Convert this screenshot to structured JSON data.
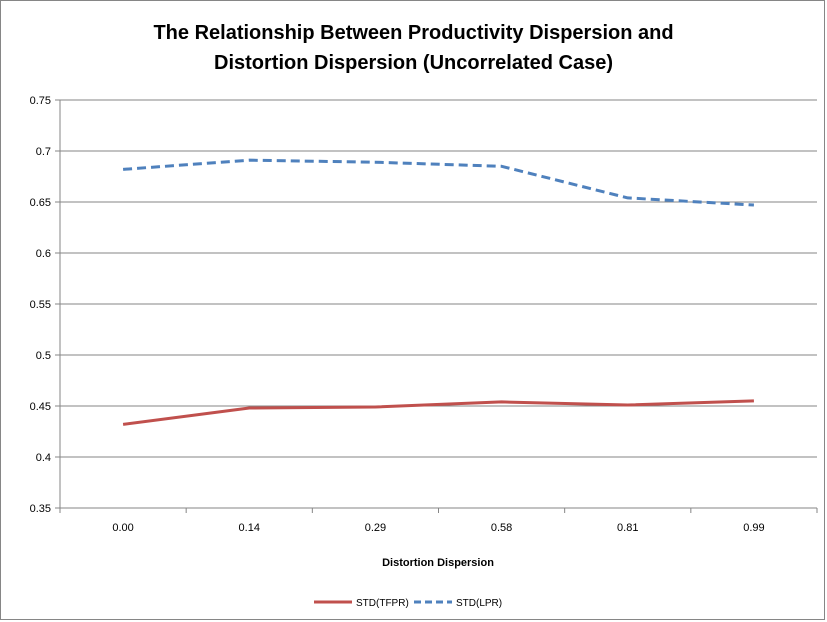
{
  "chart_data": {
    "type": "line",
    "title_lines": [
      "The Relationship Between Productivity Dispersion  and",
      "Distortion Dispersion (Uncorrelated Case)"
    ],
    "xlabel": "Distortion Dispersion",
    "ylabel": "",
    "categories": [
      "0.00",
      "0.14",
      "0.29",
      "0.58",
      "0.81",
      "0.99"
    ],
    "ylim": [
      0.35,
      0.75
    ],
    "yticks": [
      "0.35",
      "0.4",
      "0.45",
      "0.5",
      "0.55",
      "0.6",
      "0.65",
      "0.7",
      "0.75"
    ],
    "grid": "horizontal",
    "legend_position": "bottom",
    "series": [
      {
        "name": "STD(TFPR)",
        "values": [
          0.432,
          0.448,
          0.449,
          0.454,
          0.451,
          0.455
        ],
        "color": "#C0504D",
        "style": "solid"
      },
      {
        "name": "STD(LPR)",
        "values": [
          0.682,
          0.691,
          0.689,
          0.685,
          0.654,
          0.647
        ],
        "color": "#4F81BD",
        "style": "dashed"
      }
    ]
  }
}
